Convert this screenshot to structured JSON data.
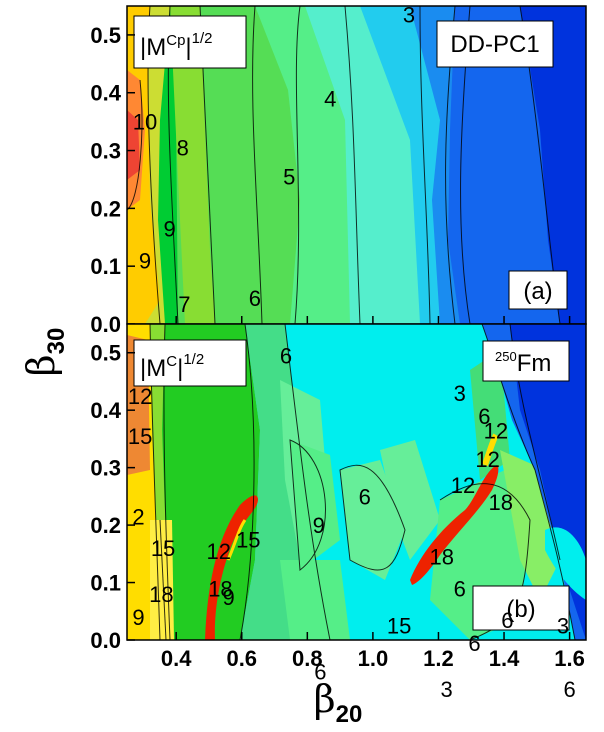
{
  "figure": {
    "x_axis_label": "β",
    "x_axis_label_sub": "20",
    "y_axis_label": "β",
    "y_axis_label_sub": "30"
  },
  "chart_data": [
    {
      "type": "heatmap",
      "panel_label": "(a)",
      "quantity_label": "|M",
      "quantity_sup": "Cp",
      "quantity_suffix": "|",
      "quantity_power": "1/2",
      "model_label": "DD-PC1",
      "xlim": [
        0.25,
        1.65
      ],
      "ylim": [
        0.0,
        0.55
      ],
      "xticks": [
        0.4,
        0.6,
        0.8,
        1.0,
        1.2,
        1.4,
        1.6
      ],
      "xtick_labels": [
        "0.4",
        "0.6",
        "0.8",
        "1.0",
        "1.2",
        "1.4",
        "1.6"
      ],
      "yticks": [
        0.0,
        0.1,
        0.2,
        0.3,
        0.4,
        0.5
      ],
      "ytick_labels": [
        "0.0",
        "0.1",
        "0.2",
        "0.3",
        "0.4",
        "0.5"
      ],
      "contour_labels": [
        {
          "text": "3",
          "x": 1.11,
          "y": 0.535
        },
        {
          "text": "4",
          "x": 0.87,
          "y": 0.39
        },
        {
          "text": "10",
          "x": 0.305,
          "y": 0.35
        },
        {
          "text": "8",
          "x": 0.42,
          "y": 0.305
        },
        {
          "text": "5",
          "x": 0.745,
          "y": 0.255
        },
        {
          "text": "9",
          "x": 0.38,
          "y": 0.165
        },
        {
          "text": "9",
          "x": 0.305,
          "y": 0.11
        },
        {
          "text": "7",
          "x": 0.425,
          "y": 0.035
        },
        {
          "text": "6",
          "x": 0.64,
          "y": 0.045
        }
      ]
    },
    {
      "type": "heatmap",
      "panel_label": "(b)",
      "quantity_label": "|M",
      "quantity_sup": "C",
      "quantity_suffix": "|",
      "quantity_power": "1/2",
      "nucleus_sup": "250",
      "nucleus_label": "Fm",
      "xlim": [
        0.25,
        1.65
      ],
      "ylim": [
        0.0,
        0.55
      ],
      "xticks": [
        0.4,
        0.6,
        0.8,
        1.0,
        1.2,
        1.4,
        1.6
      ],
      "xtick_labels": [
        "0.4",
        "0.6",
        "0.8",
        "1.0",
        "1.2",
        "1.4",
        "1.6"
      ],
      "yticks": [
        0.0,
        0.1,
        0.2,
        0.3,
        0.4,
        0.5
      ],
      "ytick_labels": [
        "0.0",
        "0.1",
        "0.2",
        "0.3",
        "0.4",
        "0.5"
      ],
      "contour_labels": [
        {
          "text": "6",
          "x": 0.735,
          "y": 0.495
        },
        {
          "text": "12",
          "x": 0.29,
          "y": 0.425
        },
        {
          "text": "15",
          "x": 0.29,
          "y": 0.355
        },
        {
          "text": "3",
          "x": 1.265,
          "y": 0.43
        },
        {
          "text": "6",
          "x": 1.34,
          "y": 0.39
        },
        {
          "text": "12",
          "x": 1.375,
          "y": 0.365
        },
        {
          "text": "12",
          "x": 1.35,
          "y": 0.315
        },
        {
          "text": "12",
          "x": 1.275,
          "y": 0.27
        },
        {
          "text": "18",
          "x": 1.39,
          "y": 0.24
        },
        {
          "text": "6",
          "x": 0.975,
          "y": 0.25
        },
        {
          "text": "2",
          "x": 0.285,
          "y": 0.215
        },
        {
          "text": "9",
          "x": 0.835,
          "y": 0.2
        },
        {
          "text": "15",
          "x": 0.36,
          "y": 0.16
        },
        {
          "text": "15",
          "x": 0.62,
          "y": 0.175
        },
        {
          "text": "12",
          "x": 0.53,
          "y": 0.155
        },
        {
          "text": "18",
          "x": 1.21,
          "y": 0.145
        },
        {
          "text": "18",
          "x": 0.355,
          "y": 0.08
        },
        {
          "text": "18",
          "x": 0.535,
          "y": 0.09
        },
        {
          "text": "9",
          "x": 0.56,
          "y": 0.075
        },
        {
          "text": "9",
          "x": 0.285,
          "y": 0.04
        },
        {
          "text": "6",
          "x": 1.265,
          "y": 0.09
        },
        {
          "text": "6",
          "x": 1.41,
          "y": 0.035
        },
        {
          "text": "15",
          "x": 1.08,
          "y": 0.025
        },
        {
          "text": "6",
          "x": 1.31,
          "y": -0.005
        },
        {
          "text": "3",
          "x": 1.58,
          "y": 0.025
        },
        {
          "text": "6",
          "x": 0.84,
          "y": -0.055
        },
        {
          "text": "3",
          "x": 1.225,
          "y": -0.085
        },
        {
          "text": "6",
          "x": 1.6,
          "y": -0.085
        }
      ]
    }
  ]
}
